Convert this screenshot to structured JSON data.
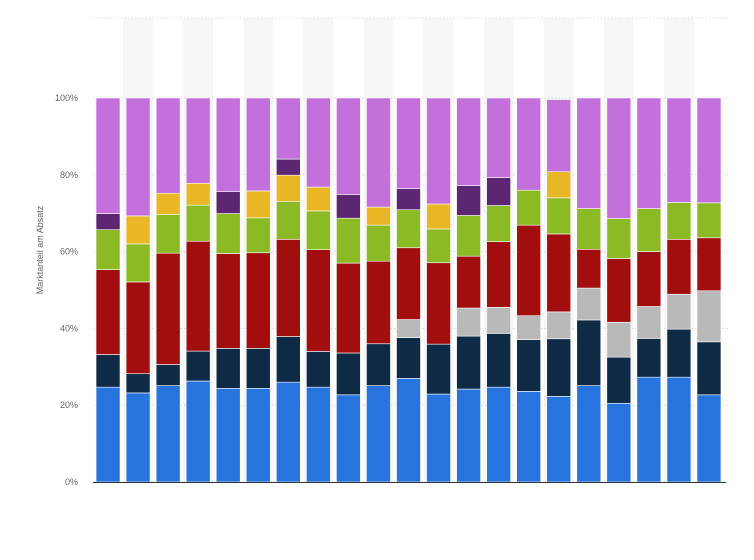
{
  "chart_data": {
    "type": "bar",
    "stacked": true,
    "normalized": true,
    "ylabel": "Marktanteil am Absatz",
    "ylim": [
      0,
      100
    ],
    "y_ticks": [
      0,
      20,
      40,
      60,
      80,
      100
    ],
    "y_tick_labels": [
      "0%",
      "20%",
      "40%",
      "60%",
      "80%",
      "100%"
    ],
    "categories": [
      "",
      "",
      "",
      "",
      "",
      "",
      "",
      "",
      "",
      "",
      "",
      "",
      "",
      "",
      "",
      "",
      "",
      "",
      "",
      "",
      ""
    ],
    "grid": "horizontal",
    "legend": "none",
    "series": [
      {
        "color": "#2874de",
        "values": [
          24.7,
          23.2,
          25.1,
          26.3,
          24.4,
          24.4,
          26.0,
          24.7,
          22.7,
          25.1,
          27.0,
          22.9,
          24.2,
          24.7,
          23.6,
          22.3,
          25.1,
          20.5,
          27.3,
          27.3,
          22.7
        ]
      },
      {
        "color": "#0e2a45",
        "values": [
          8.5,
          5.0,
          5.5,
          7.8,
          10.4,
          10.4,
          11.9,
          9.3,
          10.9,
          10.9,
          10.6,
          13.0,
          13.8,
          14.0,
          13.5,
          15.0,
          17.1,
          12.0,
          10.1,
          12.5,
          13.8
        ]
      },
      {
        "color": "#b9b9b9",
        "values": [
          0,
          0,
          0,
          0,
          0,
          0,
          0,
          0,
          0,
          0,
          4.7,
          0,
          7.3,
          6.8,
          6.2,
          7.0,
          8.3,
          9.1,
          8.3,
          9.1,
          13.3
        ]
      },
      {
        "color": "#a20e0e",
        "values": [
          22.1,
          23.9,
          29.0,
          28.6,
          24.7,
          24.9,
          25.3,
          26.5,
          23.4,
          21.5,
          18.7,
          21.2,
          13.5,
          17.1,
          23.6,
          20.3,
          10.1,
          16.6,
          14.3,
          14.3,
          13.8
        ]
      },
      {
        "color": "#8cba25",
        "values": [
          10.4,
          9.9,
          10.1,
          9.4,
          10.4,
          9.1,
          9.9,
          10.1,
          11.7,
          9.4,
          9.9,
          8.8,
          10.6,
          9.4,
          9.1,
          9.4,
          10.6,
          10.4,
          11.2,
          9.6,
          9.1
        ]
      },
      {
        "color": "#e9b625",
        "values": [
          0,
          7.3,
          5.5,
          5.7,
          0,
          7.0,
          6.8,
          6.2,
          0,
          4.7,
          0,
          6.5,
          0,
          0,
          0,
          6.8,
          0,
          0,
          0,
          0,
          0
        ]
      },
      {
        "color": "#5d2672",
        "values": [
          4.2,
          0,
          0,
          0,
          5.7,
          0,
          4.2,
          0,
          6.2,
          0,
          5.5,
          0,
          7.8,
          7.3,
          0,
          0,
          0,
          0,
          0,
          0,
          0
        ]
      },
      {
        "color": "#c36fdc",
        "values": [
          30.1,
          30.7,
          24.8,
          22.2,
          24.4,
          24.2,
          15.9,
          23.2,
          25.1,
          28.4,
          23.6,
          27.6,
          22.8,
          20.7,
          24.0,
          18.8,
          28.8,
          31.4,
          28.8,
          27.2,
          27.3
        ]
      }
    ]
  }
}
